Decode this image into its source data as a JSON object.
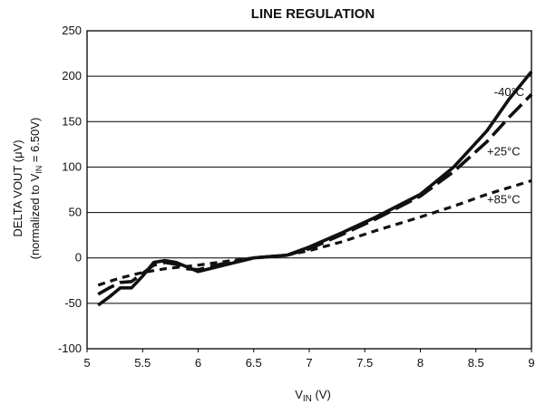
{
  "chart_data": {
    "type": "line",
    "title": "LINE REGULATION",
    "xlabel": {
      "main": "V",
      "sub": "IN",
      "unit": " (V)"
    },
    "ylabel": "DELTA VOUT (μV)",
    "ylabel2": {
      "pre": "(normalized to V",
      "sub": "IN",
      "post": " = 6.50V)"
    },
    "xlim": [
      5,
      9
    ],
    "ylim": [
      -100,
      250
    ],
    "xticks": [
      "5",
      "5.5",
      "6",
      "6.5",
      "7",
      "7.5",
      "8",
      "8.5",
      "9"
    ],
    "xtick_values": [
      5,
      5.5,
      6,
      6.5,
      7,
      7.5,
      8,
      8.5,
      9
    ],
    "yticks": [
      "-100",
      "-50",
      "0",
      "50",
      "100",
      "150",
      "200",
      "250"
    ],
    "ytick_values": [
      -100,
      -50,
      0,
      50,
      100,
      150,
      200,
      250
    ],
    "grid": {
      "horizontal": true,
      "vertical": false
    },
    "series": [
      {
        "name": "-40°C",
        "style": "solid",
        "x": [
          5.1,
          5.2,
          5.3,
          5.4,
          5.5,
          5.6,
          5.7,
          5.8,
          5.9,
          6.0,
          6.2,
          6.4,
          6.5,
          6.8,
          7.0,
          7.3,
          7.6,
          8.0,
          8.3,
          8.6,
          8.8,
          9.0
        ],
        "values": [
          -52,
          -43,
          -33,
          -33,
          -20,
          -5,
          -3,
          -5,
          -10,
          -15,
          -9,
          -3,
          0,
          3,
          12,
          28,
          45,
          70,
          100,
          140,
          175,
          205
        ]
      },
      {
        "name": "+25°C",
        "style": "dashed",
        "x": [
          5.1,
          5.2,
          5.3,
          5.4,
          5.5,
          5.6,
          5.7,
          5.8,
          5.9,
          6.0,
          6.2,
          6.5,
          6.8,
          7.0,
          7.3,
          7.6,
          8.0,
          8.3,
          8.6,
          8.8,
          9.0
        ],
        "values": [
          -40,
          -33,
          -27,
          -26,
          -17,
          -8,
          -5,
          -7,
          -12,
          -13,
          -7,
          0,
          3,
          10,
          26,
          43,
          68,
          95,
          128,
          155,
          180
        ]
      },
      {
        "name": "+85°C",
        "style": "dotted",
        "x": [
          5.1,
          5.3,
          5.5,
          5.7,
          6.0,
          6.3,
          6.5,
          6.8,
          7.0,
          7.3,
          7.6,
          8.0,
          8.3,
          8.6,
          9.0
        ],
        "values": [
          -30,
          -22,
          -16,
          -12,
          -8,
          -3,
          0,
          3,
          8,
          18,
          30,
          45,
          57,
          70,
          85
        ]
      }
    ]
  }
}
